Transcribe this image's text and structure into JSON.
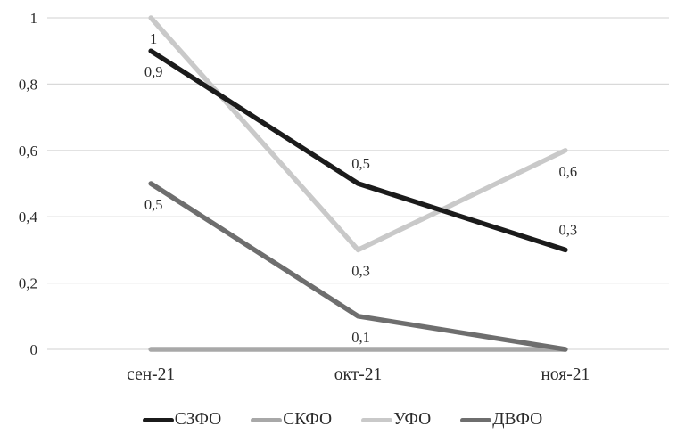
{
  "chart_data": {
    "type": "line",
    "title": "",
    "xlabel": "",
    "ylabel": "",
    "categories": [
      "сен-21",
      "окт-21",
      "ноя-21"
    ],
    "ylim": [
      0,
      1
    ],
    "y_tick_values": [
      0,
      0.2,
      0.4,
      0.6,
      0.8,
      1
    ],
    "y_tick_labels": [
      "0",
      "0,2",
      "0,4",
      "0,6",
      "0,8",
      "1"
    ],
    "grid": true,
    "grid_color": "#d9d9d9",
    "text_color": "#2b2b2b",
    "legend_position": "bottom",
    "series": [
      {
        "slug": "szfo",
        "name": "СЗФО",
        "color": "#1b1b1b",
        "values": [
          0.9,
          0.5,
          0.3
        ],
        "point_labels": [
          "0,9",
          "0,5",
          "0,3"
        ],
        "label_side": [
          "below",
          "above",
          "above"
        ]
      },
      {
        "slug": "skfo",
        "name": "СКФО",
        "color": "#a8a8a8",
        "values": [
          0,
          0,
          0
        ],
        "point_labels": [
          null,
          null,
          null
        ],
        "label_side": [
          null,
          null,
          null
        ]
      },
      {
        "slug": "ufo",
        "name": "УФО",
        "color": "#c9c9c9",
        "values": [
          1,
          0.3,
          0.6
        ],
        "point_labels": [
          "1",
          "0,3",
          "0,6"
        ],
        "label_side": [
          "below",
          "below",
          "below"
        ]
      },
      {
        "slug": "dvfo",
        "name": "ДВФО",
        "color": "#6e6e6e",
        "values": [
          0.5,
          0.1,
          0
        ],
        "point_labels": [
          "0,5",
          "0,1",
          null
        ],
        "label_side": [
          "below",
          "below",
          null
        ]
      }
    ],
    "z_order": [
      2,
      1,
      3,
      0
    ]
  }
}
